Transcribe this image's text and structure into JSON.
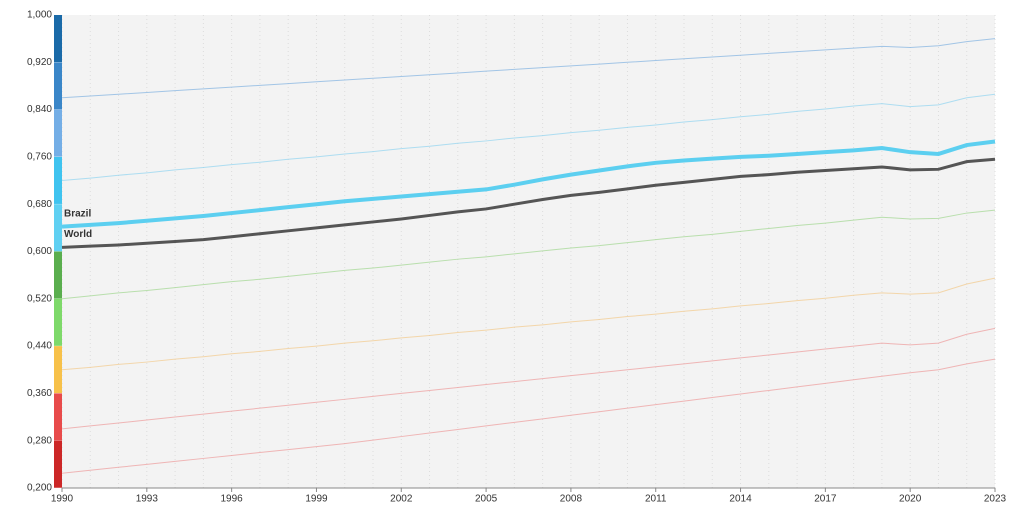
{
  "chart_data": {
    "type": "line",
    "x": [
      1990,
      1991,
      1992,
      1993,
      1994,
      1995,
      1996,
      1997,
      1998,
      1999,
      2000,
      2001,
      2002,
      2003,
      2004,
      2005,
      2006,
      2007,
      2008,
      2009,
      2010,
      2011,
      2012,
      2013,
      2014,
      2015,
      2016,
      2017,
      2018,
      2019,
      2020,
      2021,
      2022,
      2023
    ],
    "xlim": [
      1990,
      2023
    ],
    "xticks": [
      1990,
      1993,
      1996,
      1999,
      2002,
      2005,
      2008,
      2011,
      2014,
      2017,
      2020,
      2023
    ],
    "ylim": [
      0.2,
      1
    ],
    "yticks": [
      {
        "value": 1,
        "label": "1,000"
      },
      {
        "value": 0.92,
        "label": "0,920"
      },
      {
        "value": 0.84,
        "label": "0,840"
      },
      {
        "value": 0.76,
        "label": "0,760"
      },
      {
        "value": 0.68,
        "label": "0,680"
      },
      {
        "value": 0.6,
        "label": "0,600"
      },
      {
        "value": 0.52,
        "label": "0,520"
      },
      {
        "value": 0.44,
        "label": "0,440"
      },
      {
        "value": 0.36,
        "label": "0,360"
      },
      {
        "value": 0.28,
        "label": "0,280"
      },
      {
        "value": 0.2,
        "label": "0,200"
      }
    ],
    "axis_band_colors": [
      "#1a6aa8",
      "#3a86c8",
      "#74aee6",
      "#3fc3ef",
      "#5fd0f2",
      "#5aae4e",
      "#7ed96a",
      "#f7c14a",
      "#e84b4b",
      "#cc2727"
    ],
    "grid": true,
    "series": [
      {
        "color": "#7fb0e0",
        "values": [
          0.86,
          0.863,
          0.866,
          0.869,
          0.872,
          0.875,
          0.878,
          0.881,
          0.884,
          0.887,
          0.89,
          0.893,
          0.896,
          0.899,
          0.902,
          0.905,
          0.908,
          0.911,
          0.914,
          0.917,
          0.92,
          0.923,
          0.926,
          0.929,
          0.932,
          0.935,
          0.938,
          0.941,
          0.944,
          0.947,
          0.945,
          0.948,
          0.955,
          0.96
        ]
      },
      {
        "color": "#8fd3f0",
        "values": [
          0.72,
          0.724,
          0.729,
          0.733,
          0.738,
          0.742,
          0.747,
          0.751,
          0.756,
          0.76,
          0.765,
          0.769,
          0.774,
          0.778,
          0.783,
          0.787,
          0.792,
          0.796,
          0.801,
          0.805,
          0.81,
          0.814,
          0.819,
          0.823,
          0.828,
          0.832,
          0.837,
          0.841,
          0.846,
          0.85,
          0.845,
          0.848,
          0.86,
          0.866
        ]
      },
      {
        "color": "#9fd68f",
        "values": [
          0.52,
          0.525,
          0.53,
          0.534,
          0.539,
          0.544,
          0.549,
          0.553,
          0.558,
          0.563,
          0.568,
          0.572,
          0.577,
          0.582,
          0.587,
          0.591,
          0.596,
          0.601,
          0.606,
          0.61,
          0.615,
          0.62,
          0.625,
          0.629,
          0.634,
          0.639,
          0.644,
          0.648,
          0.653,
          0.658,
          0.655,
          0.656,
          0.665,
          0.67
        ]
      },
      {
        "color": "#f2c98a",
        "values": [
          0.4,
          0.404,
          0.409,
          0.413,
          0.418,
          0.422,
          0.427,
          0.431,
          0.436,
          0.44,
          0.445,
          0.449,
          0.454,
          0.458,
          0.463,
          0.467,
          0.472,
          0.476,
          0.481,
          0.485,
          0.49,
          0.494,
          0.499,
          0.503,
          0.508,
          0.512,
          0.517,
          0.521,
          0.526,
          0.53,
          0.528,
          0.53,
          0.545,
          0.555
        ]
      },
      {
        "color": "#ec9a9a",
        "values": [
          0.3,
          0.305,
          0.31,
          0.315,
          0.32,
          0.325,
          0.33,
          0.335,
          0.34,
          0.345,
          0.35,
          0.355,
          0.36,
          0.365,
          0.37,
          0.375,
          0.38,
          0.385,
          0.39,
          0.395,
          0.4,
          0.405,
          0.41,
          0.415,
          0.42,
          0.425,
          0.43,
          0.435,
          0.44,
          0.445,
          0.442,
          0.445,
          0.46,
          0.47
        ]
      },
      {
        "color": "#ec9a9a",
        "values": [
          0.225,
          0.23,
          0.235,
          0.24,
          0.245,
          0.25,
          0.255,
          0.26,
          0.265,
          0.27,
          0.275,
          0.281,
          0.287,
          0.293,
          0.299,
          0.305,
          0.311,
          0.317,
          0.323,
          0.329,
          0.335,
          0.341,
          0.347,
          0.353,
          0.359,
          0.365,
          0.371,
          0.377,
          0.383,
          0.389,
          0.395,
          0.4,
          0.41,
          0.418
        ]
      },
      {
        "name": "Brazil",
        "color": "#5ccff0",
        "values": [
          0.642,
          0.645,
          0.648,
          0.652,
          0.656,
          0.66,
          0.665,
          0.67,
          0.675,
          0.68,
          0.685,
          0.689,
          0.693,
          0.697,
          0.701,
          0.705,
          0.713,
          0.722,
          0.73,
          0.737,
          0.744,
          0.75,
          0.754,
          0.757,
          0.76,
          0.762,
          0.765,
          0.768,
          0.771,
          0.775,
          0.768,
          0.765,
          0.78,
          0.786
        ]
      },
      {
        "name": "World",
        "color": "#555555",
        "values": [
          0.607,
          0.609,
          0.611,
          0.614,
          0.617,
          0.62,
          0.625,
          0.63,
          0.635,
          0.64,
          0.645,
          0.65,
          0.655,
          0.661,
          0.667,
          0.672,
          0.68,
          0.688,
          0.695,
          0.7,
          0.706,
          0.712,
          0.717,
          0.722,
          0.727,
          0.73,
          0.734,
          0.737,
          0.74,
          0.743,
          0.738,
          0.739,
          0.752,
          0.756
        ]
      }
    ]
  }
}
